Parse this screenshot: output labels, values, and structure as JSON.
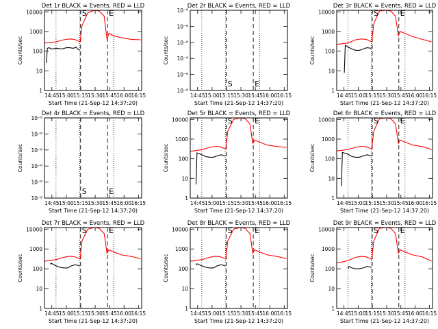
{
  "colors": {
    "background": "#ffffff",
    "axes": "#000000",
    "events": "#000000",
    "lld": "#ff0000"
  },
  "shared": {
    "xlabel": "Start Time (21-Sep-12 14:37:20)",
    "ylabel": "Counts/sec",
    "x_tick_labels": [
      "14:45",
      "15:00",
      "15:15",
      "15:30",
      "15:45",
      "16:00",
      "16:15"
    ],
    "x_ticks_min": [
      7.67,
      22.67,
      37.67,
      52.67,
      67.67,
      82.67,
      97.67
    ],
    "xlim_min": [
      0,
      101
    ],
    "y_log_tick_labels": [
      "1",
      "10",
      "100",
      "1000",
      "10000"
    ],
    "y_sci_tick_labels": [
      "10⁻⁶",
      "10⁻⁶",
      "10⁻⁶",
      "10⁻⁶",
      "10⁻⁶",
      "10⁻⁶"
    ]
  },
  "chart_data": [
    {
      "title": "Det 1r BLACK = Events, RED = LLD",
      "type": "line",
      "scale": "log",
      "ylim": [
        1,
        12000
      ],
      "marker_S": "S",
      "marker_E": "E",
      "vlines_dotted_min": [
        12,
        36.5,
        72
      ],
      "vlines_dashed_min": [
        37.5,
        65.5
      ],
      "series": [
        {
          "name": "RED",
          "color": "#ff0000",
          "x": [
            0,
            5,
            12,
            20,
            26,
            31,
            35,
            37,
            39,
            45,
            52,
            57,
            62,
            65,
            67,
            72,
            80,
            90,
            100
          ],
          "y": [
            260,
            270,
            300,
            380,
            420,
            400,
            330,
            300,
            2000,
            9000,
            12000,
            11000,
            6000,
            400,
            800,
            600,
            480,
            400,
            380
          ]
        },
        {
          "name": "BLACK",
          "color": "#000000",
          "x": [
            2,
            3,
            5,
            7,
            13,
            18,
            23,
            26,
            30,
            33,
            34.5,
            36.5
          ],
          "y": [
            25,
            140,
            150,
            130,
            140,
            130,
            150,
            150,
            140,
            160,
            130,
            110
          ]
        }
      ]
    },
    {
      "title": "Det 2r BLACK = Events, RED = LLD",
      "type": "line",
      "scale": "sci",
      "marker_S": "S",
      "marker_E": "E",
      "vlines_dotted_min": [
        12,
        36.5,
        72
      ],
      "vlines_dashed_min": [
        37.5,
        65.5
      ],
      "series": []
    },
    {
      "title": "Det 3r BLACK = Events, RED = LLD",
      "type": "line",
      "scale": "log",
      "ylim": [
        1,
        12000
      ],
      "marker_S": "S",
      "marker_E": "E",
      "vlines_dotted_min": [
        12,
        36.5,
        72
      ],
      "vlines_dashed_min": [
        37.5,
        65.5
      ],
      "series": [
        {
          "name": "RED",
          "color": "#ff0000",
          "x": [
            0,
            6,
            12,
            20,
            26,
            31,
            35,
            37,
            39,
            45,
            52,
            57,
            62,
            65,
            67,
            72,
            80,
            90,
            100
          ],
          "y": [
            220,
            240,
            260,
            380,
            420,
            400,
            330,
            300,
            2500,
            11000,
            12000,
            11000,
            6000,
            600,
            1000,
            800,
            550,
            400,
            300
          ]
        },
        {
          "name": "BLACK",
          "color": "#000000",
          "x": [
            8,
            9,
            12,
            16,
            20,
            24,
            28,
            32,
            36.5
          ],
          "y": [
            8,
            200,
            160,
            130,
            110,
            110,
            130,
            150,
            140
          ]
        }
      ]
    },
    {
      "title": "Det 4r BLACK = Events, RED = LLD",
      "type": "line",
      "scale": "sci",
      "marker_S": "S",
      "marker_E": "E",
      "vlines_dotted_min": [
        12,
        36.5,
        72
      ],
      "vlines_dashed_min": [
        37.5,
        65.5
      ],
      "series": []
    },
    {
      "title": "Det 5r BLACK = Events, RED = LLD",
      "type": "line",
      "scale": "log",
      "ylim": [
        1,
        12000
      ],
      "marker_S": "S",
      "marker_E": "E",
      "vlines_dotted_min": [
        12,
        36.5,
        72
      ],
      "vlines_dashed_min": [
        37.5,
        65.5
      ],
      "series": [
        {
          "name": "RED",
          "color": "#ff0000",
          "x": [
            0,
            6,
            12,
            20,
            26,
            31,
            35,
            37,
            39,
            45,
            52,
            57,
            62,
            65,
            67,
            72,
            80,
            90,
            100
          ],
          "y": [
            240,
            260,
            290,
            380,
            430,
            410,
            340,
            310,
            2500,
            10000,
            12000,
            11000,
            6000,
            600,
            900,
            700,
            500,
            420,
            380
          ]
        },
        {
          "name": "BLACK",
          "color": "#000000",
          "x": [
            6,
            7,
            12,
            16,
            20,
            24,
            28,
            32,
            36.5
          ],
          "y": [
            5,
            200,
            160,
            130,
            120,
            120,
            140,
            160,
            140
          ]
        }
      ]
    },
    {
      "title": "Det 6r BLACK = Events, RED = LLD",
      "type": "line",
      "scale": "log",
      "ylim": [
        1,
        12000
      ],
      "marker_S": "S",
      "marker_E": "E",
      "vlines_dotted_min": [
        12,
        36.5,
        72
      ],
      "vlines_dashed_min": [
        37.5,
        65.5
      ],
      "series": [
        {
          "name": "RED",
          "color": "#ff0000",
          "x": [
            0,
            6,
            12,
            20,
            26,
            31,
            35,
            37,
            39,
            45,
            52,
            57,
            62,
            65,
            67,
            72,
            80,
            90,
            100
          ],
          "y": [
            250,
            270,
            300,
            380,
            430,
            410,
            340,
            310,
            2500,
            11000,
            12000,
            11000,
            6000,
            600,
            900,
            700,
            500,
            420,
            300
          ]
        },
        {
          "name": "BLACK",
          "color": "#000000",
          "x": [
            5,
            6,
            12,
            16,
            20,
            24,
            28,
            32,
            36.5
          ],
          "y": [
            4,
            210,
            170,
            130,
            120,
            120,
            140,
            160,
            140
          ]
        }
      ]
    },
    {
      "title": "Det 7r BLACK = Events, RED = LLD",
      "type": "line",
      "scale": "log",
      "ylim": [
        1,
        12000
      ],
      "marker_S": "S",
      "marker_E": "E",
      "vlines_dotted_min": [
        12,
        36.5,
        72
      ],
      "vlines_dashed_min": [
        37.5,
        65.5
      ],
      "series": [
        {
          "name": "RED",
          "color": "#ff0000",
          "x": [
            0,
            6,
            12,
            20,
            26,
            31,
            35,
            37,
            39,
            45,
            52,
            57,
            62,
            65,
            67,
            72,
            80,
            90,
            100
          ],
          "y": [
            240,
            260,
            290,
            380,
            430,
            410,
            340,
            310,
            2500,
            10000,
            12000,
            11000,
            6000,
            600,
            900,
            700,
            500,
            420,
            320
          ]
        },
        {
          "name": "BLACK",
          "color": "#000000",
          "x": [
            6,
            7,
            12,
            16,
            20,
            24,
            28,
            32,
            36.5
          ],
          "y": [
            170,
            190,
            140,
            120,
            110,
            110,
            140,
            160,
            140
          ]
        }
      ]
    },
    {
      "title": "Det 8r BLACK = Events, RED = LLD",
      "type": "line",
      "scale": "log",
      "ylim": [
        1,
        12000
      ],
      "marker_S": "S",
      "marker_E": "E",
      "vlines_dotted_min": [
        12,
        36.5,
        72
      ],
      "vlines_dashed_min": [
        37.5,
        65.5
      ],
      "series": [
        {
          "name": "RED",
          "color": "#ff0000",
          "x": [
            0,
            6,
            12,
            20,
            26,
            31,
            35,
            37,
            39,
            45,
            52,
            57,
            62,
            65,
            67,
            72,
            80,
            90,
            100
          ],
          "y": [
            240,
            260,
            290,
            380,
            430,
            410,
            340,
            310,
            2500,
            10000,
            12000,
            11000,
            6000,
            600,
            900,
            700,
            500,
            420,
            320
          ]
        },
        {
          "name": "BLACK",
          "color": "#000000",
          "x": [
            6,
            7,
            12,
            16,
            20,
            24,
            28,
            32,
            36.5
          ],
          "y": [
            150,
            180,
            140,
            120,
            110,
            110,
            140,
            160,
            140
          ]
        }
      ]
    },
    {
      "title": "Det 9r BLACK = Events, RED = LLD",
      "type": "line",
      "scale": "log",
      "ylim": [
        1,
        12000
      ],
      "marker_S": "S",
      "marker_E": "E",
      "vlines_dotted_min": [
        12,
        36.5,
        72
      ],
      "vlines_dashed_min": [
        37.5,
        65.5
      ],
      "series": [
        {
          "name": "RED",
          "color": "#ff0000",
          "x": [
            0,
            6,
            12,
            20,
            26,
            31,
            35,
            37,
            39,
            45,
            52,
            57,
            62,
            65,
            67,
            72,
            80,
            90,
            100
          ],
          "y": [
            200,
            220,
            260,
            380,
            420,
            400,
            330,
            300,
            2500,
            11000,
            12000,
            11000,
            6000,
            600,
            900,
            700,
            500,
            400,
            240
          ]
        },
        {
          "name": "BLACK",
          "color": "#000000",
          "x": [
            12,
            13,
            16,
            20,
            24,
            28,
            32,
            36.5
          ],
          "y": [
            100,
            130,
            110,
            100,
            100,
            110,
            130,
            120
          ]
        }
      ]
    }
  ]
}
